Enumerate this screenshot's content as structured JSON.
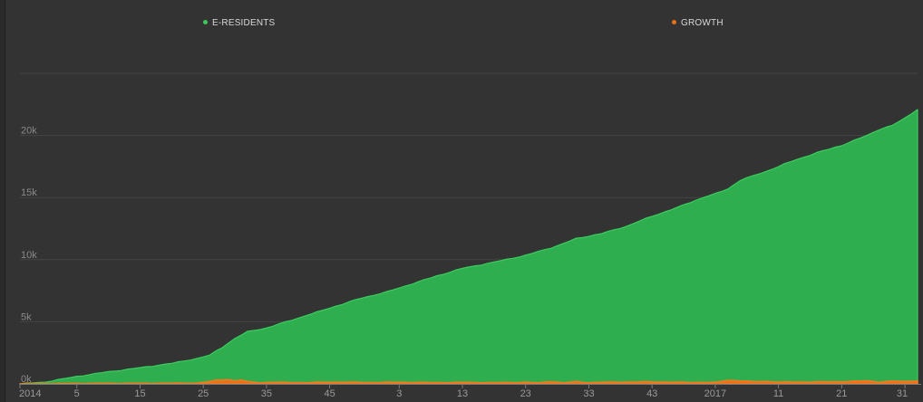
{
  "chart_data": {
    "type": "area",
    "title": "",
    "xlabel": "",
    "ylabel": "",
    "ylim": [
      0,
      25000
    ],
    "y_ticks": [
      0,
      5000,
      10000,
      15000,
      20000
    ],
    "y_tick_labels": [
      "0k",
      "5k",
      "10k",
      "15k",
      "20k"
    ],
    "x_tick_labels": [
      "2014",
      "5",
      "15",
      "25",
      "35",
      "45",
      "3",
      "13",
      "23",
      "33",
      "43",
      "2017",
      "11",
      "21",
      "31"
    ],
    "x_tick_index": [
      0,
      9,
      19,
      29,
      39,
      49,
      60,
      70,
      80,
      90,
      100,
      110,
      120,
      130,
      140
    ],
    "grid": true,
    "legend_placement": "top",
    "legend": [
      {
        "name": "E-RESIDENTS",
        "color": "#3cc75a"
      },
      {
        "name": "GROWTH",
        "color": "#e8711c"
      }
    ],
    "series": [
      {
        "name": "E-RESIDENTS",
        "color": "#2fae50",
        "keypoints": [
          [
            0,
            0
          ],
          [
            4,
            150
          ],
          [
            9,
            600
          ],
          [
            14,
            980
          ],
          [
            19,
            1300
          ],
          [
            24,
            1650
          ],
          [
            28,
            2050
          ],
          [
            30,
            2300
          ],
          [
            32,
            2950
          ],
          [
            34,
            3650
          ],
          [
            36,
            4200
          ],
          [
            39,
            4500
          ],
          [
            44,
            5300
          ],
          [
            49,
            6100
          ],
          [
            54,
            6900
          ],
          [
            58,
            7400
          ],
          [
            62,
            8050
          ],
          [
            66,
            8700
          ],
          [
            70,
            9300
          ],
          [
            75,
            9800
          ],
          [
            80,
            10350
          ],
          [
            84,
            10950
          ],
          [
            86,
            11300
          ],
          [
            88,
            11700
          ],
          [
            92,
            12100
          ],
          [
            96,
            12700
          ],
          [
            100,
            13500
          ],
          [
            104,
            14200
          ],
          [
            108,
            15000
          ],
          [
            110,
            15300
          ],
          [
            112,
            15700
          ],
          [
            114,
            16400
          ],
          [
            118,
            17100
          ],
          [
            122,
            17900
          ],
          [
            126,
            18600
          ],
          [
            130,
            19200
          ],
          [
            134,
            20000
          ],
          [
            136,
            20500
          ],
          [
            138,
            20800
          ],
          [
            140,
            21400
          ],
          [
            142,
            22100
          ]
        ]
      },
      {
        "name": "GROWTH",
        "color": "#e8711c",
        "keypoints": [
          [
            0,
            0
          ],
          [
            10,
            40
          ],
          [
            20,
            50
          ],
          [
            28,
            70
          ],
          [
            30,
            180
          ],
          [
            31,
            300
          ],
          [
            33,
            350
          ],
          [
            34,
            250
          ],
          [
            35,
            320
          ],
          [
            36,
            180
          ],
          [
            38,
            100
          ],
          [
            40,
            130
          ],
          [
            45,
            110
          ],
          [
            50,
            150
          ],
          [
            55,
            120
          ],
          [
            60,
            140
          ],
          [
            65,
            110
          ],
          [
            70,
            120
          ],
          [
            75,
            100
          ],
          [
            80,
            130
          ],
          [
            82,
            80
          ],
          [
            84,
            200
          ],
          [
            86,
            90
          ],
          [
            88,
            180
          ],
          [
            90,
            110
          ],
          [
            95,
            150
          ],
          [
            100,
            170
          ],
          [
            105,
            130
          ],
          [
            110,
            120
          ],
          [
            112,
            300
          ],
          [
            114,
            250
          ],
          [
            116,
            180
          ],
          [
            118,
            200
          ],
          [
            120,
            150
          ],
          [
            125,
            160
          ],
          [
            130,
            180
          ],
          [
            134,
            250
          ],
          [
            136,
            150
          ],
          [
            138,
            230
          ],
          [
            140,
            200
          ],
          [
            142,
            260
          ]
        ]
      }
    ]
  }
}
